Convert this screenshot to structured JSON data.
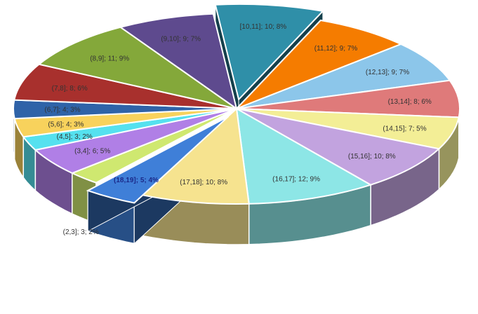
{
  "chart_data": {
    "type": "pie",
    "style": "3d-exploded",
    "label_format": "{category}; {value}; {percent}",
    "slices": [
      {
        "category": "[10,11]",
        "value": 10,
        "percent": "8%",
        "color": "#2f8fa8",
        "exploded": true
      },
      {
        "category": "(11,12]",
        "value": 9,
        "percent": "7%",
        "color": "#f57c00"
      },
      {
        "category": "(12,13]",
        "value": 9,
        "percent": "7%",
        "color": "#8cc6ea"
      },
      {
        "category": "(13,14]",
        "value": 8,
        "percent": "6%",
        "color": "#df7a7a"
      },
      {
        "category": "(14,15]",
        "value": 7,
        "percent": "5%",
        "color": "#f3ee96"
      },
      {
        "category": "(15,16]",
        "value": 10,
        "percent": "8%",
        "color": "#c2a3df"
      },
      {
        "category": "(16,17]",
        "value": 12,
        "percent": "9%",
        "color": "#8de6e6"
      },
      {
        "category": "(17,18]",
        "value": 10,
        "percent": "8%",
        "color": "#f6e38f"
      },
      {
        "category": "(18,19]",
        "value": 5,
        "percent": "4%",
        "color": "#3f7fd8",
        "exploded": true
      },
      {
        "category": "(2,3]",
        "value": 3,
        "percent": "2%",
        "color": "#cfe870"
      },
      {
        "category": "(3,4]",
        "value": 6,
        "percent": "5%",
        "color": "#b07fe6"
      },
      {
        "category": "(4,5]",
        "value": 3,
        "percent": "2%",
        "color": "#55e1ef"
      },
      {
        "category": "(5,6]",
        "value": 4,
        "percent": "3%",
        "color": "#f8d25c"
      },
      {
        "category": "(6,7]",
        "value": 4,
        "percent": "3%",
        "color": "#2f63a8"
      },
      {
        "category": "(7,8]",
        "value": 8,
        "percent": "6%",
        "color": "#a8302d"
      },
      {
        "category": "(8,9]",
        "value": 11,
        "percent": "9%",
        "color": "#84a83a"
      },
      {
        "category": "(9,10]",
        "value": 9,
        "percent": "7%",
        "color": "#5e4a8e"
      }
    ]
  }
}
